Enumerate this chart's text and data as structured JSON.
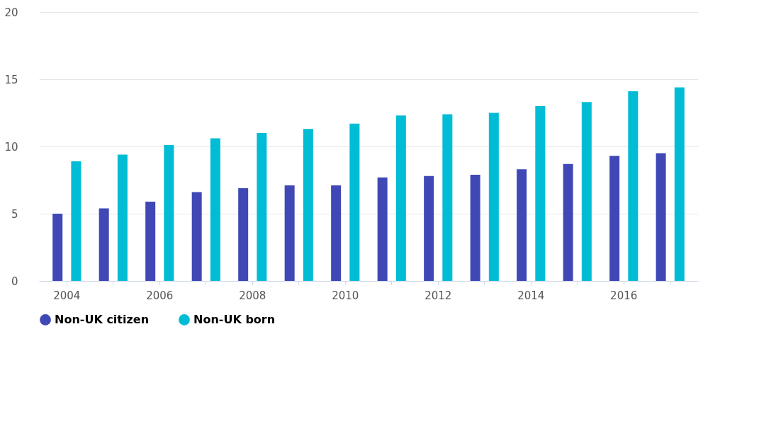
{
  "chart_data": {
    "type": "bar",
    "categories": [
      "2004",
      null,
      "2006",
      null,
      "2008",
      null,
      "2010",
      null,
      "2012",
      null,
      "2014",
      null,
      "2016",
      null
    ],
    "series": [
      {
        "name": "Non-UK citizen",
        "color": "#3f48b5",
        "values": [
          5.0,
          5.4,
          5.9,
          6.6,
          6.9,
          7.1,
          7.1,
          7.7,
          7.8,
          7.9,
          8.3,
          8.7,
          9.3,
          9.5
        ]
      },
      {
        "name": "Non-UK born",
        "color": "#00bcd4",
        "values": [
          8.9,
          9.4,
          10.1,
          10.6,
          11.0,
          11.3,
          11.7,
          12.3,
          12.4,
          12.5,
          13.0,
          13.3,
          14.1,
          14.4
        ]
      }
    ],
    "ylim": [
      0,
      20
    ],
    "yticks": [
      0,
      5,
      10,
      15,
      20
    ],
    "grid": "y",
    "legend": "bottom"
  }
}
